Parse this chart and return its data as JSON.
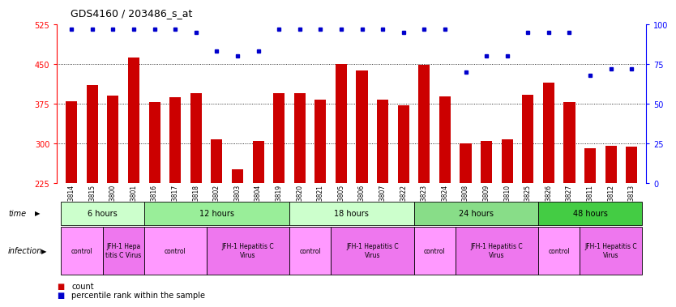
{
  "title": "GDS4160 / 203486_s_at",
  "samples": [
    "GSM523814",
    "GSM523815",
    "GSM523800",
    "GSM523801",
    "GSM523816",
    "GSM523817",
    "GSM523818",
    "GSM523802",
    "GSM523803",
    "GSM523804",
    "GSM523819",
    "GSM523820",
    "GSM523821",
    "GSM523805",
    "GSM523806",
    "GSM523807",
    "GSM523822",
    "GSM523823",
    "GSM523824",
    "GSM523808",
    "GSM523809",
    "GSM523810",
    "GSM523825",
    "GSM523826",
    "GSM523827",
    "GSM523811",
    "GSM523812",
    "GSM523813"
  ],
  "counts": [
    380,
    410,
    390,
    462,
    378,
    387,
    395,
    308,
    250,
    305,
    395,
    395,
    383,
    450,
    437,
    383,
    372,
    449,
    388,
    300,
    305,
    308,
    392,
    415,
    378,
    290,
    295,
    293
  ],
  "percentiles": [
    97,
    97,
    97,
    97,
    97,
    97,
    95,
    83,
    80,
    83,
    97,
    97,
    97,
    97,
    97,
    97,
    95,
    97,
    97,
    70,
    80,
    80,
    95,
    95,
    95,
    68,
    72,
    72
  ],
  "ylim_left": [
    225,
    525
  ],
  "ylim_right": [
    0,
    100
  ],
  "yticks_left": [
    225,
    300,
    375,
    450,
    525
  ],
  "yticks_right": [
    0,
    25,
    50,
    75,
    100
  ],
  "bar_color": "#cc0000",
  "dot_color": "#0000cc",
  "chart_bg": "#ffffff",
  "time_groups": [
    {
      "label": "6 hours",
      "start": 0,
      "end": 4,
      "color": "#ccffcc"
    },
    {
      "label": "12 hours",
      "start": 4,
      "end": 11,
      "color": "#99ee99"
    },
    {
      "label": "18 hours",
      "start": 11,
      "end": 17,
      "color": "#ccffcc"
    },
    {
      "label": "24 hours",
      "start": 17,
      "end": 23,
      "color": "#88dd88"
    },
    {
      "label": "48 hours",
      "start": 23,
      "end": 28,
      "color": "#44cc44"
    }
  ],
  "infection_groups": [
    {
      "label": "control",
      "start": 0,
      "end": 2,
      "color": "#ff99ff"
    },
    {
      "label": "JFH-1 Hepa\ntitis C Virus",
      "start": 2,
      "end": 4,
      "color": "#ee77ee"
    },
    {
      "label": "control",
      "start": 4,
      "end": 7,
      "color": "#ff99ff"
    },
    {
      "label": "JFH-1 Hepatitis C\nVirus",
      "start": 7,
      "end": 11,
      "color": "#ee77ee"
    },
    {
      "label": "control",
      "start": 11,
      "end": 13,
      "color": "#ff99ff"
    },
    {
      "label": "JFH-1 Hepatitis C\nVirus",
      "start": 13,
      "end": 17,
      "color": "#ee77ee"
    },
    {
      "label": "control",
      "start": 17,
      "end": 19,
      "color": "#ff99ff"
    },
    {
      "label": "JFH-1 Hepatitis C\nVirus",
      "start": 19,
      "end": 23,
      "color": "#ee77ee"
    },
    {
      "label": "control",
      "start": 23,
      "end": 25,
      "color": "#ff99ff"
    },
    {
      "label": "JFH-1 Hepatitis C\nVirus",
      "start": 25,
      "end": 28,
      "color": "#ee77ee"
    }
  ],
  "legend_count_color": "#cc0000",
  "legend_dot_color": "#0000cc",
  "bar_width": 0.55
}
